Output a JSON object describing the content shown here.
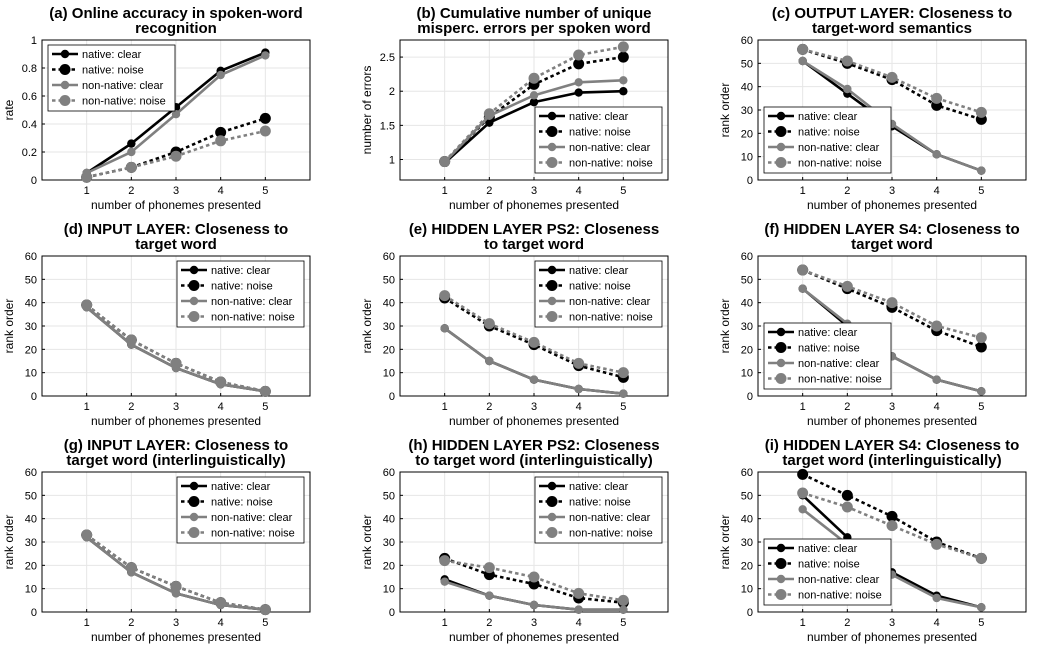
{
  "legend_labels": [
    "native: clear",
    "native: noise",
    "non-native: clear",
    "non-native: noise"
  ],
  "series_colors": {
    "native": "#000000",
    "non_native": "#808080"
  },
  "chart_data": [
    {
      "type": "line",
      "title": [
        "(a) Online accuracy in spoken-word",
        "recognition"
      ],
      "xlabel": "number of phonemes presented",
      "ylabel": "rate",
      "x": [
        1,
        2,
        3,
        4,
        5
      ],
      "xlim": [
        0,
        6
      ],
      "ylim": [
        0,
        1
      ],
      "yticks": [
        0,
        0.2,
        0.4,
        0.6,
        0.8,
        1
      ],
      "legend_position": "top-left",
      "series": [
        {
          "name": "native: clear",
          "values": [
            0.05,
            0.26,
            0.52,
            0.78,
            0.91
          ]
        },
        {
          "name": "native: noise",
          "values": [
            0.02,
            0.09,
            0.2,
            0.34,
            0.44
          ]
        },
        {
          "name": "non-native: clear",
          "values": [
            0.05,
            0.2,
            0.47,
            0.75,
            0.89
          ]
        },
        {
          "name": "non-native: noise",
          "values": [
            0.02,
            0.09,
            0.17,
            0.28,
            0.35
          ]
        }
      ]
    },
    {
      "type": "line",
      "title": [
        "(b) Cumulative number of unique",
        "misperc. errors per spoken word"
      ],
      "xlabel": "number of phonemes presented",
      "ylabel": "number of errors",
      "x": [
        1,
        2,
        3,
        4,
        5
      ],
      "xlim": [
        0,
        6
      ],
      "ylim": [
        0.7,
        2.75
      ],
      "yticks": [
        1,
        1.5,
        2,
        2.5
      ],
      "legend_position": "bottom-right",
      "series": [
        {
          "name": "native: clear",
          "values": [
            0.95,
            1.54,
            1.84,
            1.98,
            2.0
          ]
        },
        {
          "name": "native: noise",
          "values": [
            0.97,
            1.62,
            2.1,
            2.4,
            2.5
          ]
        },
        {
          "name": "non-native: clear",
          "values": [
            0.96,
            1.64,
            1.94,
            2.13,
            2.16
          ]
        },
        {
          "name": "non-native: noise",
          "values": [
            0.97,
            1.67,
            2.19,
            2.53,
            2.65
          ]
        }
      ]
    },
    {
      "type": "line",
      "title": [
        "(c) OUTPUT LAYER: Closeness to",
        "target-word semantics"
      ],
      "xlabel": "number of phonemes presented",
      "ylabel": "rank order",
      "x": [
        1,
        2,
        3,
        4,
        5
      ],
      "xlim": [
        0,
        6
      ],
      "ylim": [
        0,
        60
      ],
      "yticks": [
        0,
        10,
        20,
        30,
        40,
        50,
        60
      ],
      "legend_position": "bottom-left",
      "series": [
        {
          "name": "native: clear",
          "values": [
            51,
            37,
            23,
            11,
            4
          ]
        },
        {
          "name": "native: noise",
          "values": [
            56,
            50,
            43,
            32,
            26
          ]
        },
        {
          "name": "non-native: clear",
          "values": [
            51,
            39,
            24,
            11,
            4
          ]
        },
        {
          "name": "non-native: noise",
          "values": [
            56,
            51,
            44,
            35,
            29
          ]
        }
      ]
    },
    {
      "type": "line",
      "title": [
        "(d) INPUT LAYER: Closeness to",
        "target word"
      ],
      "xlabel": "number of phonemes presented",
      "ylabel": "rank order",
      "x": [
        1,
        2,
        3,
        4,
        5
      ],
      "xlim": [
        0,
        6
      ],
      "ylim": [
        0,
        60
      ],
      "yticks": [
        0,
        10,
        20,
        30,
        40,
        50,
        60
      ],
      "legend_position": "top-right",
      "series": [
        {
          "name": "native: clear",
          "values": [
            38,
            22,
            12,
            5,
            2
          ]
        },
        {
          "name": "native: noise",
          "values": [
            39,
            24,
            14,
            6,
            2
          ]
        },
        {
          "name": "non-native: clear",
          "values": [
            38,
            22,
            12,
            5,
            2
          ]
        },
        {
          "name": "non-native: noise",
          "values": [
            39,
            24,
            14,
            6,
            2
          ]
        }
      ]
    },
    {
      "type": "line",
      "title": [
        "(e) HIDDEN LAYER PS2: Closeness",
        "to target word"
      ],
      "xlabel": "number of phonemes presented",
      "ylabel": "rank order",
      "x": [
        1,
        2,
        3,
        4,
        5
      ],
      "xlim": [
        0,
        6
      ],
      "ylim": [
        0,
        60
      ],
      "yticks": [
        0,
        10,
        20,
        30,
        40,
        50,
        60
      ],
      "legend_position": "top-right",
      "series": [
        {
          "name": "native: clear",
          "values": [
            29,
            15,
            7,
            3,
            1
          ]
        },
        {
          "name": "native: noise",
          "values": [
            42,
            30,
            22,
            13,
            8
          ]
        },
        {
          "name": "non-native: clear",
          "values": [
            29,
            15,
            7,
            3,
            1
          ]
        },
        {
          "name": "non-native: noise",
          "values": [
            43,
            31,
            23,
            14,
            10
          ]
        }
      ]
    },
    {
      "type": "line",
      "title": [
        "(f) HIDDEN LAYER S4: Closeness to",
        "target word"
      ],
      "xlabel": "number of phonemes presented",
      "ylabel": "rank order",
      "x": [
        1,
        2,
        3,
        4,
        5
      ],
      "xlim": [
        0,
        6
      ],
      "ylim": [
        0,
        60
      ],
      "yticks": [
        0,
        10,
        20,
        30,
        40,
        50,
        60
      ],
      "legend_position": "bottom-left",
      "series": [
        {
          "name": "native: clear",
          "values": [
            46,
            30,
            17,
            7,
            2
          ]
        },
        {
          "name": "native: noise",
          "values": [
            54,
            46,
            38,
            28,
            21
          ]
        },
        {
          "name": "non-native: clear",
          "values": [
            46,
            31,
            17,
            7,
            2
          ]
        },
        {
          "name": "non-native: noise",
          "values": [
            54,
            47,
            40,
            30,
            25
          ]
        }
      ]
    },
    {
      "type": "line",
      "title": [
        "(g) INPUT LAYER: Closeness to",
        "target word (interlinguistically)"
      ],
      "xlabel": "number of phonemes presented",
      "ylabel": "rank order",
      "x": [
        1,
        2,
        3,
        4,
        5
      ],
      "xlim": [
        0,
        6
      ],
      "ylim": [
        0,
        60
      ],
      "yticks": [
        0,
        10,
        20,
        30,
        40,
        50,
        60
      ],
      "legend_position": "top-right",
      "series": [
        {
          "name": "native: clear",
          "values": [
            32,
            17,
            8,
            3,
            1
          ]
        },
        {
          "name": "native: noise",
          "values": [
            33,
            19,
            11,
            4,
            1
          ]
        },
        {
          "name": "non-native: clear",
          "values": [
            32,
            17,
            8,
            3,
            1
          ]
        },
        {
          "name": "non-native: noise",
          "values": [
            33,
            19,
            11,
            4,
            1
          ]
        }
      ]
    },
    {
      "type": "line",
      "title": [
        "(h) HIDDEN LAYER PS2: Closeness",
        "to target word (interlinguistically)"
      ],
      "xlabel": "number of phonemes presented",
      "ylabel": "rank order",
      "x": [
        1,
        2,
        3,
        4,
        5
      ],
      "xlim": [
        0,
        6
      ],
      "ylim": [
        0,
        60
      ],
      "yticks": [
        0,
        10,
        20,
        30,
        40,
        50,
        60
      ],
      "legend_position": "top-right",
      "series": [
        {
          "name": "native: clear",
          "values": [
            14,
            7,
            3,
            1,
            1
          ]
        },
        {
          "name": "native: noise",
          "values": [
            23,
            16,
            12,
            6,
            4
          ]
        },
        {
          "name": "non-native: clear",
          "values": [
            13,
            7,
            3,
            1,
            1
          ]
        },
        {
          "name": "non-native: noise",
          "values": [
            22,
            19,
            15,
            8,
            5
          ]
        }
      ]
    },
    {
      "type": "line",
      "title": [
        "(i) HIDDEN LAYER S4: Closeness to",
        "target word (interlinguistically)"
      ],
      "xlabel": "number of phonemes presented",
      "ylabel": "rank order",
      "x": [
        1,
        2,
        3,
        4,
        5
      ],
      "xlim": [
        0,
        6
      ],
      "ylim": [
        0,
        60
      ],
      "yticks": [
        0,
        10,
        20,
        30,
        40,
        50,
        60
      ],
      "legend_position": "bottom-left",
      "series": [
        {
          "name": "native: clear",
          "values": [
            50,
            32,
            17,
            7,
            2
          ]
        },
        {
          "name": "native: noise",
          "values": [
            59,
            50,
            41,
            30,
            23
          ]
        },
        {
          "name": "non-native: clear",
          "values": [
            44,
            29,
            16,
            6,
            2
          ]
        },
        {
          "name": "non-native: noise",
          "values": [
            51,
            45,
            37,
            29,
            23
          ]
        }
      ]
    }
  ]
}
